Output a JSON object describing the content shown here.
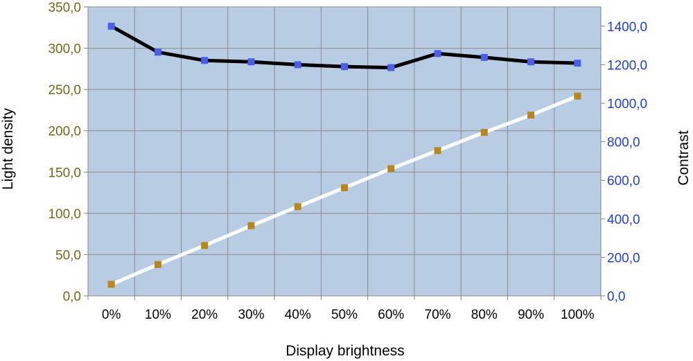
{
  "chart_data": {
    "type": "line",
    "title": "",
    "xlabel": "Display brightness",
    "ylabel": "Light density",
    "y2label": "Contrast",
    "categories": [
      "0%",
      "10%",
      "20%",
      "30%",
      "40%",
      "50%",
      "60%",
      "70%",
      "80%",
      "90%",
      "100%"
    ],
    "ylim": [
      0,
      350
    ],
    "y2lim": [
      0,
      1500
    ],
    "yticks": [
      "0,0",
      "50,0",
      "100,0",
      "150,0",
      "200,0",
      "250,0",
      "300,0",
      "350,0"
    ],
    "y2ticks": [
      "0,0",
      "200,0",
      "400,0",
      "600,0",
      "800,0",
      "1000,0",
      "1200,0",
      "1400,0"
    ],
    "grid": true,
    "legend": "none",
    "series": [
      {
        "axis": "right",
        "color": "#000000",
        "marker_color": "#4a5ee8",
        "values": [
          1400,
          1265,
          1222,
          1215,
          1200,
          1190,
          1185,
          1258,
          1238,
          1215,
          1208
        ]
      },
      {
        "axis": "left",
        "color": "#ffffff",
        "marker_color": "#b8861e",
        "values": [
          14.0,
          38.0,
          61.0,
          85.0,
          108.0,
          131.0,
          154.0,
          176.0,
          198.0,
          219.0,
          242.0
        ]
      }
    ],
    "colors": {
      "plot_bg": "#b8cce4",
      "grid": "#8a8a8a",
      "left_tick": "#6b6b1a",
      "right_tick": "#1f3fd6"
    }
  }
}
